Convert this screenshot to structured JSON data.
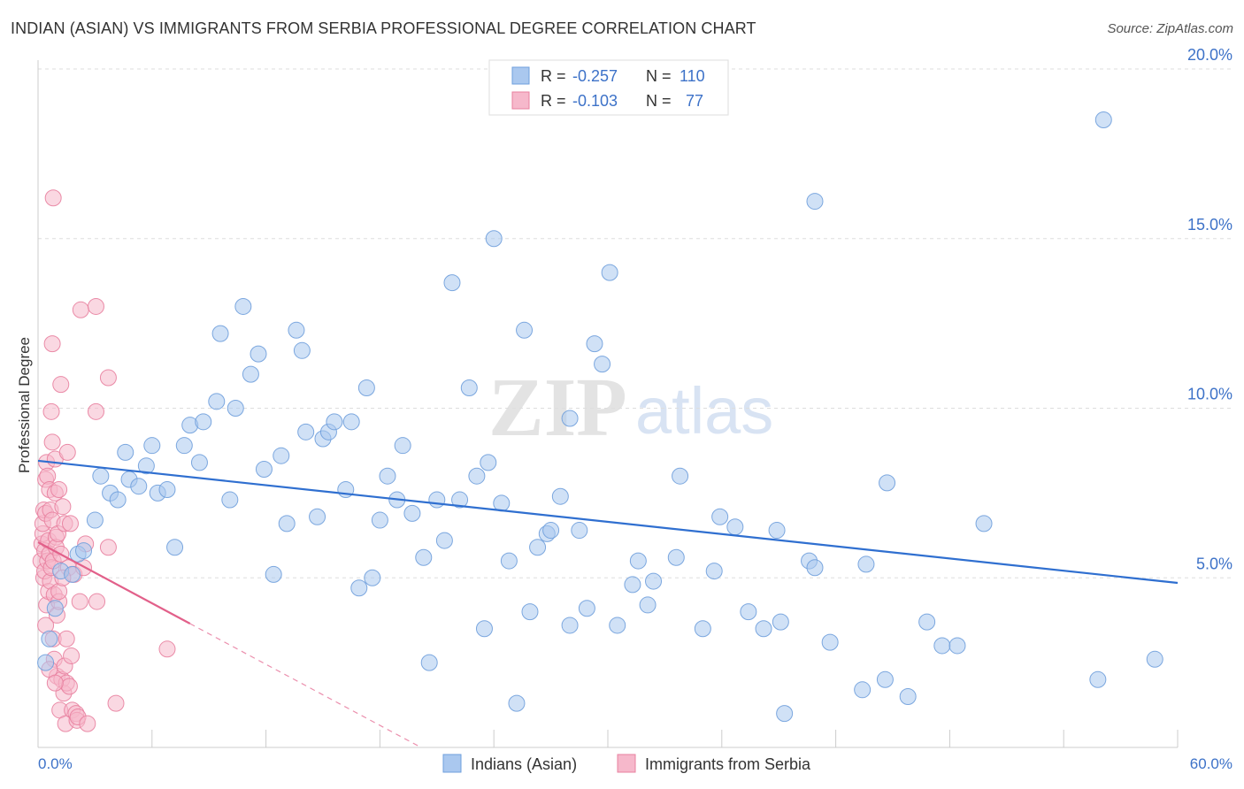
{
  "title": "INDIAN (ASIAN) VS IMMIGRANTS FROM SERBIA PROFESSIONAL DEGREE CORRELATION CHART",
  "source": "Source: ZipAtlas.com",
  "watermark": {
    "part1": "ZIP",
    "part2": "atlas"
  },
  "colors": {
    "blue_fill": "#aac8ef",
    "blue_stroke": "#6f9fdc",
    "blue_line": "#2f6fd0",
    "pink_fill": "#f6b8cb",
    "pink_stroke": "#e8809f",
    "pink_line": "#e2608a",
    "tick_label": "#3d72c8",
    "grid": "#dddddd"
  },
  "legend_top": {
    "rows": [
      {
        "r_label": "R =",
        "r_value": "-0.257",
        "n_label": "N =",
        "n_value": "110"
      },
      {
        "r_label": "R =",
        "r_value": "-0.103",
        "n_label": "N =",
        "n_value": "77"
      }
    ]
  },
  "chart_data": {
    "type": "scatter",
    "title": "INDIAN (ASIAN) VS IMMIGRANTS FROM SERBIA PROFESSIONAL DEGREE CORRELATION CHART",
    "xlabel": "",
    "ylabel": "Professional Degree",
    "xlim": [
      0,
      60
    ],
    "ylim": [
      0,
      20
    ],
    "x_tick_labels": [
      "0.0%",
      "60.0%"
    ],
    "y_ticks": [
      5,
      10,
      15,
      20
    ],
    "y_tick_labels": [
      "5.0%",
      "10.0%",
      "15.0%",
      "20.0%"
    ],
    "grid": "horizontal dashed",
    "legend_position": "bottom-center",
    "series": [
      {
        "name": "Indians (Asian)",
        "color": "#aac8ef",
        "r": -0.257,
        "n": 110,
        "trend": {
          "x": [
            0,
            60
          ],
          "y": [
            8.45,
            4.85
          ]
        },
        "points": [
          [
            0.4,
            2.5
          ],
          [
            0.6,
            3.2
          ],
          [
            0.9,
            4.1
          ],
          [
            1.2,
            5.2
          ],
          [
            1.8,
            5.1
          ],
          [
            2.1,
            5.7
          ],
          [
            2.4,
            5.8
          ],
          [
            3.0,
            6.7
          ],
          [
            3.3,
            8.0
          ],
          [
            3.8,
            7.5
          ],
          [
            4.2,
            7.3
          ],
          [
            4.6,
            8.7
          ],
          [
            4.8,
            7.9
          ],
          [
            5.3,
            7.7
          ],
          [
            5.7,
            8.3
          ],
          [
            6.0,
            8.9
          ],
          [
            6.3,
            7.5
          ],
          [
            6.8,
            7.6
          ],
          [
            7.2,
            5.9
          ],
          [
            7.7,
            8.9
          ],
          [
            8.0,
            9.5
          ],
          [
            8.5,
            8.4
          ],
          [
            8.7,
            9.6
          ],
          [
            9.4,
            10.2
          ],
          [
            9.6,
            12.2
          ],
          [
            10.1,
            7.3
          ],
          [
            10.4,
            10.0
          ],
          [
            10.8,
            13.0
          ],
          [
            11.2,
            11.0
          ],
          [
            11.6,
            11.6
          ],
          [
            11.9,
            8.2
          ],
          [
            12.4,
            5.1
          ],
          [
            12.8,
            8.6
          ],
          [
            13.1,
            6.6
          ],
          [
            13.6,
            12.3
          ],
          [
            13.9,
            11.7
          ],
          [
            14.1,
            9.3
          ],
          [
            14.7,
            6.8
          ],
          [
            15.0,
            9.1
          ],
          [
            15.3,
            9.3
          ],
          [
            15.6,
            9.6
          ],
          [
            16.2,
            7.6
          ],
          [
            16.5,
            9.6
          ],
          [
            16.9,
            4.7
          ],
          [
            17.3,
            10.6
          ],
          [
            17.6,
            5.0
          ],
          [
            18.0,
            6.7
          ],
          [
            18.4,
            8.0
          ],
          [
            18.9,
            7.3
          ],
          [
            19.2,
            8.9
          ],
          [
            19.7,
            6.9
          ],
          [
            20.3,
            5.6
          ],
          [
            20.6,
            2.5
          ],
          [
            21.0,
            7.3
          ],
          [
            21.4,
            6.1
          ],
          [
            21.8,
            13.7
          ],
          [
            22.2,
            7.3
          ],
          [
            22.7,
            10.6
          ],
          [
            23.1,
            8.0
          ],
          [
            23.5,
            3.5
          ],
          [
            23.7,
            8.4
          ],
          [
            24.0,
            15.0
          ],
          [
            24.4,
            7.2
          ],
          [
            24.8,
            5.5
          ],
          [
            25.2,
            1.3
          ],
          [
            25.6,
            12.3
          ],
          [
            25.9,
            4.0
          ],
          [
            26.3,
            5.9
          ],
          [
            26.8,
            6.3
          ],
          [
            27.0,
            6.4
          ],
          [
            27.5,
            7.4
          ],
          [
            28.0,
            9.7
          ],
          [
            28.0,
            3.6
          ],
          [
            28.5,
            6.4
          ],
          [
            28.9,
            4.1
          ],
          [
            29.3,
            11.9
          ],
          [
            29.7,
            11.3
          ],
          [
            30.1,
            14.0
          ],
          [
            30.5,
            3.6
          ],
          [
            31.3,
            4.8
          ],
          [
            31.6,
            5.5
          ],
          [
            32.1,
            4.2
          ],
          [
            32.4,
            4.9
          ],
          [
            33.6,
            5.6
          ],
          [
            33.8,
            8.0
          ],
          [
            35.0,
            3.5
          ],
          [
            35.6,
            5.2
          ],
          [
            35.9,
            6.8
          ],
          [
            36.7,
            6.5
          ],
          [
            37.4,
            4.0
          ],
          [
            38.2,
            3.5
          ],
          [
            38.9,
            6.4
          ],
          [
            39.1,
            3.7
          ],
          [
            39.3,
            1.0
          ],
          [
            40.6,
            5.5
          ],
          [
            40.9,
            5.3
          ],
          [
            40.9,
            16.1
          ],
          [
            41.7,
            3.1
          ],
          [
            43.4,
            1.7
          ],
          [
            43.6,
            5.4
          ],
          [
            44.6,
            2.0
          ],
          [
            44.7,
            7.8
          ],
          [
            45.8,
            1.5
          ],
          [
            46.8,
            3.7
          ],
          [
            47.6,
            3.0
          ],
          [
            48.4,
            3.0
          ],
          [
            49.8,
            6.6
          ],
          [
            55.8,
            2.0
          ],
          [
            56.1,
            18.5
          ],
          [
            58.8,
            2.6
          ]
        ]
      },
      {
        "name": "Immigrants from Serbia",
        "color": "#f6b8cb",
        "r": -0.103,
        "n": 77,
        "trend": {
          "x": [
            0,
            8.0
          ],
          "y": [
            6.05,
            3.65
          ]
        },
        "trend_dashed": {
          "x": [
            8.0,
            20.0
          ],
          "y": [
            3.65,
            0.05
          ]
        },
        "points": [
          [
            0.15,
            5.5
          ],
          [
            0.2,
            6.0
          ],
          [
            0.25,
            6.3
          ],
          [
            0.25,
            6.6
          ],
          [
            0.3,
            5.0
          ],
          [
            0.3,
            7.0
          ],
          [
            0.35,
            5.8
          ],
          [
            0.35,
            5.2
          ],
          [
            0.4,
            7.9
          ],
          [
            0.4,
            6.9
          ],
          [
            0.45,
            4.2
          ],
          [
            0.45,
            8.4
          ],
          [
            0.5,
            5.5
          ],
          [
            0.5,
            8.0
          ],
          [
            0.55,
            4.6
          ],
          [
            0.55,
            6.1
          ],
          [
            0.6,
            7.6
          ],
          [
            0.6,
            5.7
          ],
          [
            0.65,
            4.9
          ],
          [
            0.65,
            7.0
          ],
          [
            0.7,
            5.3
          ],
          [
            0.75,
            6.7
          ],
          [
            0.75,
            9.0
          ],
          [
            0.8,
            5.5
          ],
          [
            0.8,
            3.2
          ],
          [
            0.85,
            2.6
          ],
          [
            0.85,
            4.5
          ],
          [
            0.9,
            7.5
          ],
          [
            0.9,
            8.5
          ],
          [
            0.95,
            6.2
          ],
          [
            0.7,
            9.9
          ],
          [
            0.75,
            11.9
          ],
          [
            0.8,
            16.2
          ],
          [
            0.95,
            5.9
          ],
          [
            1.0,
            2.1
          ],
          [
            1.0,
            3.9
          ],
          [
            1.05,
            6.3
          ],
          [
            1.1,
            4.3
          ],
          [
            1.1,
            7.6
          ],
          [
            1.15,
            1.1
          ],
          [
            1.2,
            5.7
          ],
          [
            1.2,
            10.7
          ],
          [
            1.25,
            2.0
          ],
          [
            1.3,
            7.1
          ],
          [
            1.35,
            1.6
          ],
          [
            1.4,
            2.4
          ],
          [
            1.4,
            6.6
          ],
          [
            1.45,
            0.7
          ],
          [
            1.5,
            1.9
          ],
          [
            1.5,
            3.2
          ],
          [
            1.55,
            8.7
          ],
          [
            1.6,
            5.3
          ],
          [
            1.65,
            1.8
          ],
          [
            1.7,
            6.6
          ],
          [
            1.75,
            2.7
          ],
          [
            1.8,
            1.1
          ],
          [
            1.9,
            5.1
          ],
          [
            2.0,
            1.0
          ],
          [
            2.05,
            0.8
          ],
          [
            2.1,
            0.9
          ],
          [
            2.25,
            12.9
          ],
          [
            2.2,
            4.3
          ],
          [
            2.4,
            5.3
          ],
          [
            2.5,
            6.0
          ],
          [
            2.6,
            0.7
          ],
          [
            3.05,
            13.0
          ],
          [
            3.05,
            9.9
          ],
          [
            3.1,
            4.3
          ],
          [
            3.7,
            5.9
          ],
          [
            3.7,
            10.9
          ],
          [
            4.1,
            1.3
          ],
          [
            6.8,
            2.9
          ],
          [
            1.1,
            4.6
          ],
          [
            0.6,
            2.3
          ],
          [
            1.3,
            5.0
          ],
          [
            0.4,
            3.6
          ],
          [
            0.9,
            1.9
          ]
        ]
      }
    ]
  }
}
